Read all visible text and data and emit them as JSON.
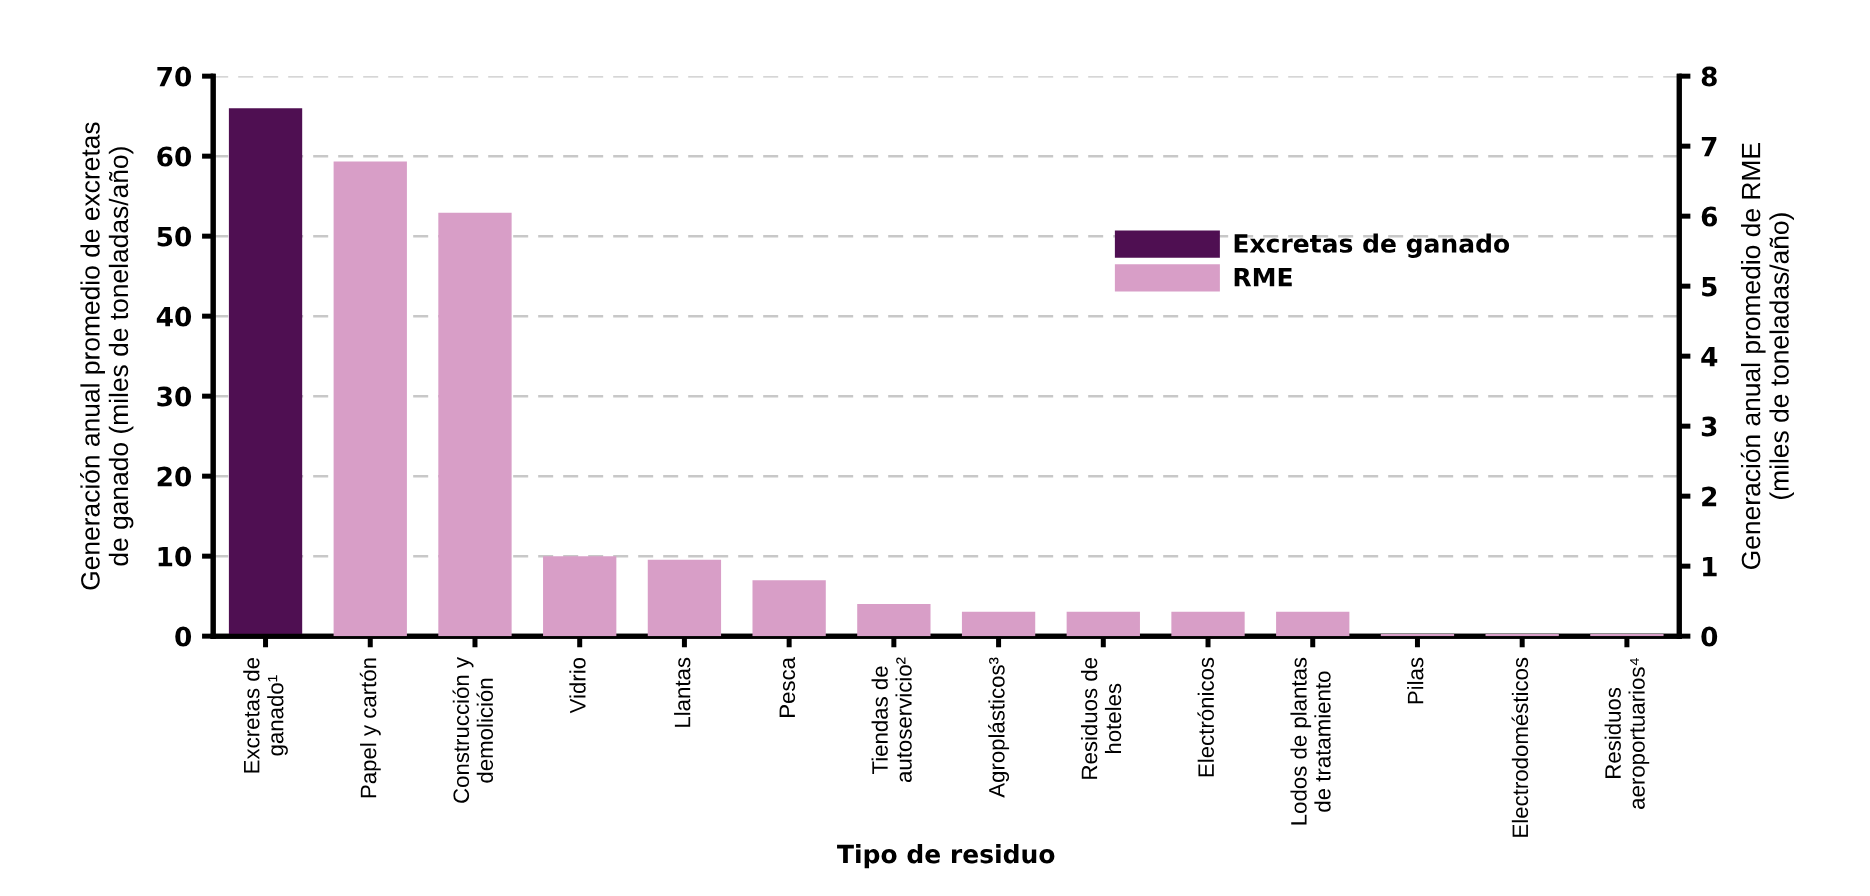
{
  "chart_data": {
    "type": "bar",
    "xlabel": "Tipo de residuo",
    "ylabel": "Generación anual promedio de excretas\nde ganado (miles de toneladas/año)",
    "y2label": "Generación anual promedio de RME\n(miles de toneladas/año)",
    "categories": [
      "Excretas de\nganado¹",
      "Papel y cartón",
      "Construcción y\ndemolición",
      "Vidrio",
      "Llantas",
      "Pesca",
      "Tiendas de\nautoservicio²",
      "Agroplásticos³",
      "Residuos de\nhoteles",
      "Electrónicos",
      "Lodos de plantas\nde tratamiento",
      "Pilas",
      "Electrodomésticos",
      "Residuos\naeroportuarios⁴"
    ],
    "series": [
      {
        "name": "Excretas de ganado",
        "color": "#4f0f52",
        "values": [
          66,
          null,
          null,
          null,
          null,
          null,
          null,
          null,
          null,
          null,
          null,
          null,
          null,
          null
        ]
      },
      {
        "name": "RME",
        "color": "#d89ec7",
        "axis": "y2",
        "values": [
          null,
          6.78,
          6.05,
          1.14,
          1.09,
          0.8,
          0.46,
          0.35,
          0.35,
          0.35,
          0.35,
          0.03,
          0.03,
          0.03
        ]
      }
    ],
    "ylim": [
      0,
      70
    ],
    "yticks": [
      0,
      10,
      20,
      30,
      40,
      50,
      60,
      70
    ],
    "y2lim": [
      0,
      8
    ],
    "y2ticks": [
      0,
      1,
      2,
      3,
      4,
      5,
      6,
      7,
      8
    ],
    "grid": "y",
    "legend": "right"
  }
}
